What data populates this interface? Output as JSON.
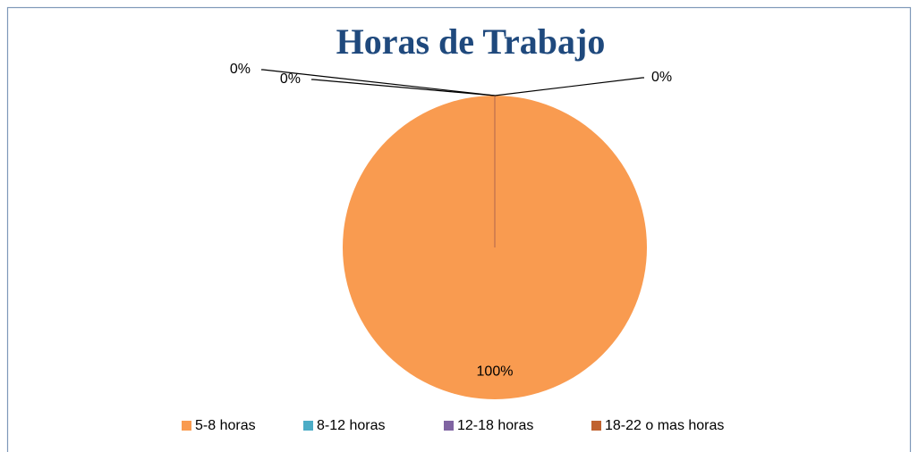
{
  "chart_data": {
    "type": "pie",
    "title": "Horas de Trabajo",
    "categories": [
      "5-8 horas",
      "8-12 horas",
      "12-18 horas",
      "18-22 o mas horas"
    ],
    "values": [
      100,
      0,
      0,
      0
    ],
    "value_labels": [
      "100%",
      "0%",
      "0%",
      "0%"
    ],
    "colors": [
      "#f99b50",
      "#4bacc6",
      "#8064a2",
      "#c0622f"
    ],
    "legend": "bottom"
  }
}
